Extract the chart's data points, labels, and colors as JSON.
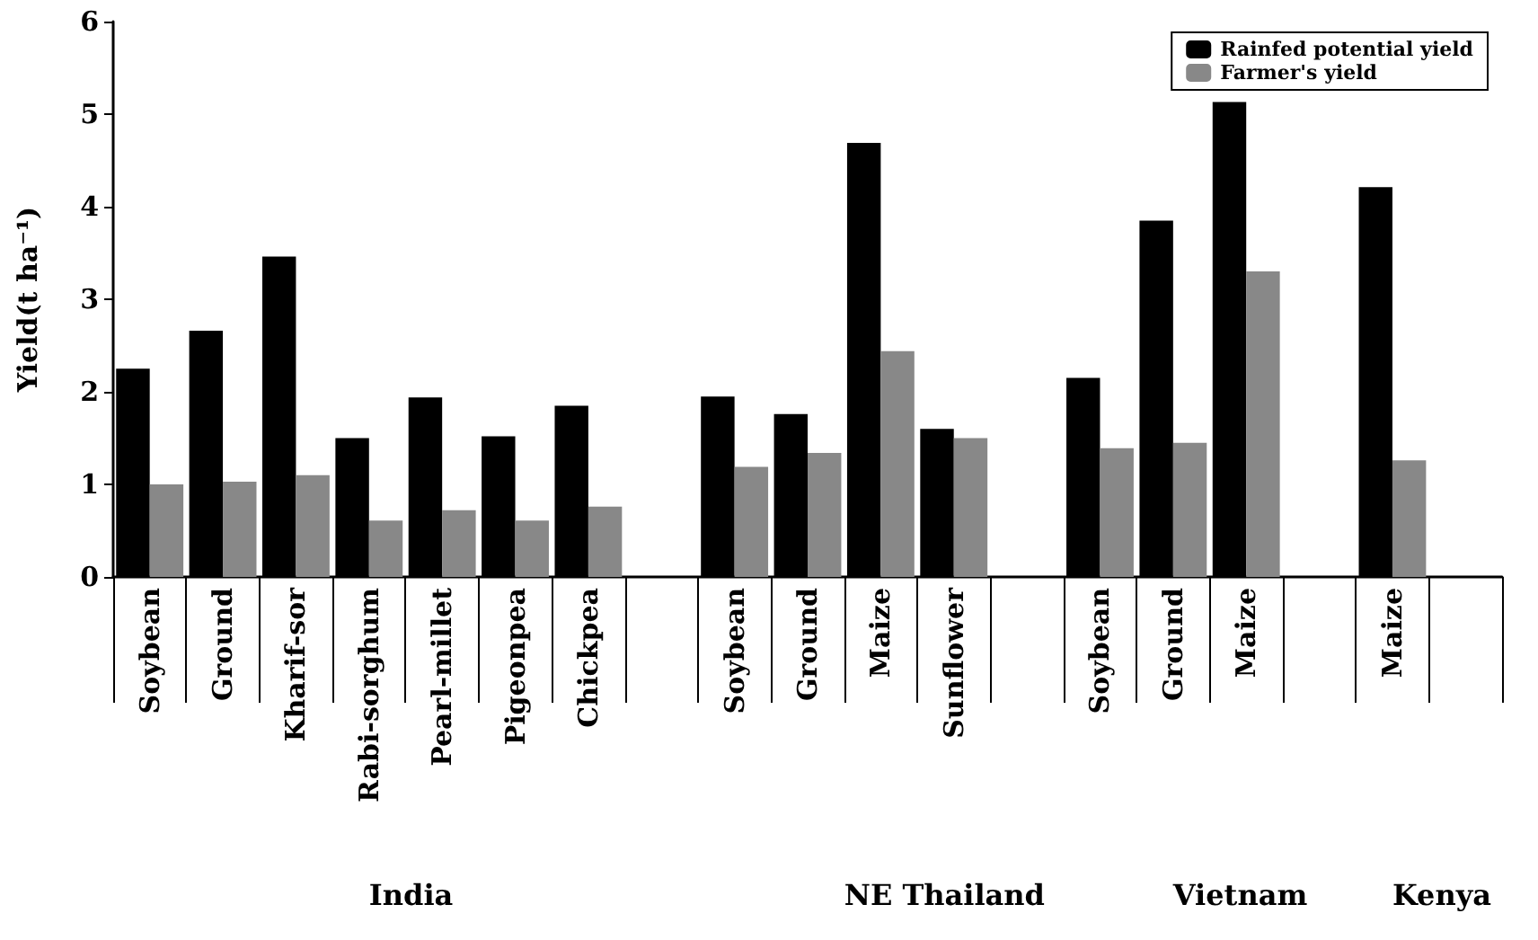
{
  "chart_data": {
    "type": "bar",
    "ylabel": "Yield(t ha⁻¹)",
    "categories": [
      "Soybean",
      "Ground",
      "Kharif-sor",
      "Rabi-sorghum",
      "Pearl-millet",
      "Pigeonpea",
      "Chickpea",
      null,
      "Soybean",
      "Ground",
      "Maize",
      "Sunflower",
      null,
      "Soybean",
      "Ground",
      "Maize",
      null,
      "Maize",
      null
    ],
    "series": [
      {
        "name": "Rainfed potential yield",
        "color": "#000000",
        "values": [
          2.25,
          2.66,
          3.46,
          1.5,
          1.94,
          1.52,
          1.85,
          null,
          1.95,
          1.76,
          4.69,
          1.6,
          null,
          2.15,
          3.85,
          5.13,
          null,
          4.21,
          null
        ]
      },
      {
        "name": "Farmer's yield",
        "color": "#888888",
        "values": [
          1.0,
          1.03,
          1.1,
          0.61,
          0.72,
          0.61,
          0.76,
          null,
          1.19,
          1.34,
          2.44,
          1.5,
          null,
          1.39,
          1.45,
          3.3,
          null,
          1.26,
          null
        ]
      }
    ],
    "ylim": [
      0,
      6
    ],
    "yticks": [
      0,
      1,
      2,
      3,
      4,
      5,
      6
    ],
    "grid": false,
    "legend": "top right",
    "annotations": [
      "India",
      "NE Thailand",
      "Vietnam",
      "Kenya"
    ]
  }
}
